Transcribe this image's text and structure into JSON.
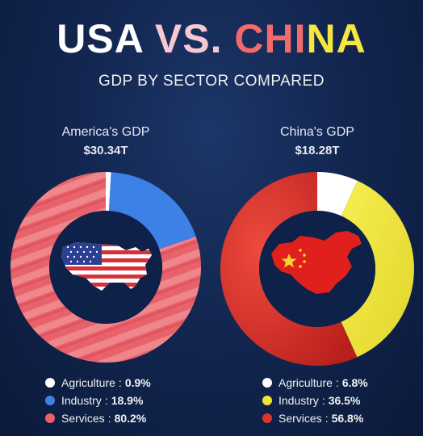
{
  "title": {
    "part1": "USA ",
    "part2": "VS. ",
    "part3": "CHI",
    "part4": "NA"
  },
  "subtitle": "GDP BY SECTOR COMPARED",
  "colors": {
    "agriculture": "#ffffff",
    "usa_industry": "#3d80e6",
    "usa_services": "#e8626b",
    "china_industry": "#f0e63a",
    "china_services": "#e0352e",
    "inner": "#0e2149"
  },
  "chart_data": [
    {
      "type": "pie",
      "label": "America's GDP",
      "total": "$30.34T",
      "categories": [
        "Agriculture",
        "Industry",
        "Services"
      ],
      "values": [
        0.9,
        18.9,
        80.2
      ],
      "value_labels": [
        "0.9%",
        "18.9%",
        "80.2%"
      ],
      "icon": "usa-map-flag-icon"
    },
    {
      "type": "pie",
      "label": "China's GDP",
      "total": "$18.28T",
      "categories": [
        "Agriculture",
        "Industry",
        "Services"
      ],
      "values": [
        6.8,
        36.5,
        56.8
      ],
      "value_labels": [
        "6.8%",
        "36.5%",
        "56.8%"
      ],
      "icon": "china-map-flag-icon"
    }
  ]
}
